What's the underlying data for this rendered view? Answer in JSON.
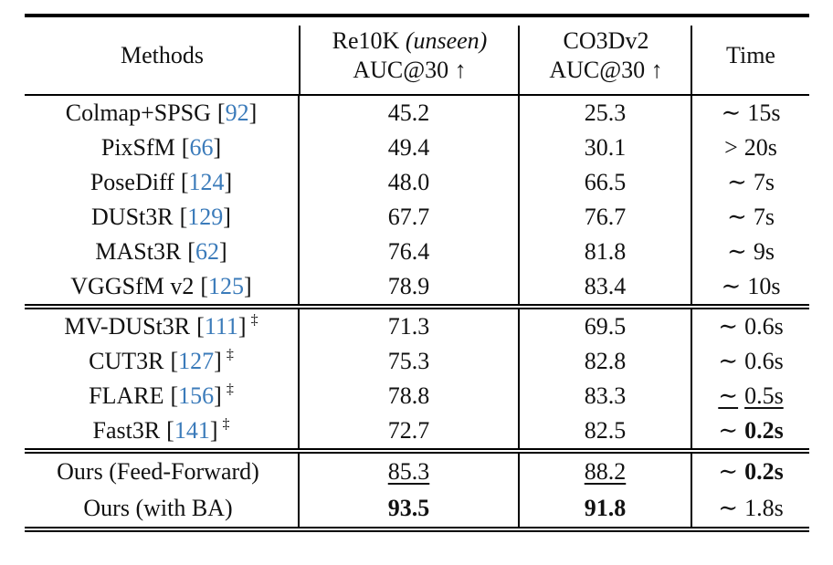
{
  "table": {
    "colors": {
      "citation_blue": "#3B7BBA",
      "text": "#111111",
      "rule": "#000000"
    },
    "header": {
      "methods": "Methods",
      "re10k_name": "Re10K ",
      "re10k_italic": "(unseen)",
      "auc_label": "AUC@30 ↑",
      "co3d_name": "CO3Dv2",
      "time": "Time"
    },
    "groups": [
      {
        "name": "optimization-based",
        "rows": [
          {
            "method": "Colmap+SPSG",
            "cite": "92",
            "dagger": false,
            "re10k": "45.2",
            "re10k_style": "normal",
            "co3d": "25.3",
            "co3d_style": "normal",
            "time_prefix": "∼",
            "time_value": "15s",
            "time_style": "normal",
            "time_underline": false
          },
          {
            "method": "PixSfM",
            "cite": "66",
            "dagger": false,
            "re10k": "49.4",
            "re10k_style": "normal",
            "co3d": "30.1",
            "co3d_style": "normal",
            "time_prefix": ">",
            "time_value": "20s",
            "time_style": "normal",
            "time_underline": false
          },
          {
            "method": "PoseDiff",
            "cite": "124",
            "dagger": false,
            "re10k": "48.0",
            "re10k_style": "normal",
            "co3d": "66.5",
            "co3d_style": "normal",
            "time_prefix": "∼",
            "time_value": "7s",
            "time_style": "normal",
            "time_underline": false
          },
          {
            "method": "DUSt3R",
            "cite": "129",
            "dagger": false,
            "re10k": "67.7",
            "re10k_style": "normal",
            "co3d": "76.7",
            "co3d_style": "normal",
            "time_prefix": "∼",
            "time_value": "7s",
            "time_style": "normal",
            "time_underline": false
          },
          {
            "method": "MASt3R",
            "cite": "62",
            "dagger": false,
            "re10k": "76.4",
            "re10k_style": "normal",
            "co3d": "81.8",
            "co3d_style": "normal",
            "time_prefix": "∼",
            "time_value": "9s",
            "time_style": "normal",
            "time_underline": false
          },
          {
            "method": "VGGSfM v2",
            "cite": "125",
            "dagger": false,
            "re10k": "78.9",
            "re10k_style": "normal",
            "co3d": "83.4",
            "co3d_style": "normal",
            "time_prefix": "∼",
            "time_value": "10s",
            "time_style": "normal",
            "time_underline": false
          }
        ]
      },
      {
        "name": "feed-forward-baselines",
        "rows": [
          {
            "method": "MV-DUSt3R",
            "cite": "111",
            "dagger": true,
            "re10k": "71.3",
            "re10k_style": "normal",
            "co3d": "69.5",
            "co3d_style": "normal",
            "time_prefix": "∼",
            "time_value": "0.6s",
            "time_style": "normal",
            "time_underline": false
          },
          {
            "method": "CUT3R",
            "cite": "127",
            "dagger": true,
            "re10k": "75.3",
            "re10k_style": "normal",
            "co3d": "82.8",
            "co3d_style": "normal",
            "time_prefix": "∼",
            "time_value": "0.6s",
            "time_style": "normal",
            "time_underline": false
          },
          {
            "method": "FLARE",
            "cite": "156",
            "dagger": true,
            "re10k": "78.8",
            "re10k_style": "normal",
            "co3d": "83.3",
            "co3d_style": "normal",
            "time_prefix": "∼",
            "time_value": "0.5s",
            "time_style": "normal",
            "time_underline": true
          },
          {
            "method": "Fast3R",
            "cite": "141",
            "dagger": true,
            "re10k": "72.7",
            "re10k_style": "normal",
            "co3d": "82.5",
            "co3d_style": "normal",
            "time_prefix": "∼",
            "time_value": "0.2s",
            "time_style": "bold",
            "time_underline": false
          }
        ]
      },
      {
        "name": "ours",
        "rows": [
          {
            "method": "Ours (Feed-Forward)",
            "cite": "",
            "dagger": false,
            "re10k": "85.3",
            "re10k_style": "underline",
            "co3d": "88.2",
            "co3d_style": "underline",
            "time_prefix": "∼",
            "time_value": "0.2s",
            "time_style": "bold",
            "time_underline": false
          },
          {
            "method": "Ours (with BA)",
            "cite": "",
            "dagger": false,
            "re10k": "93.5",
            "re10k_style": "bold",
            "co3d": "91.8",
            "co3d_style": "bold",
            "time_prefix": "∼",
            "time_value": "1.8s",
            "time_style": "normal",
            "time_underline": false
          }
        ]
      }
    ]
  }
}
